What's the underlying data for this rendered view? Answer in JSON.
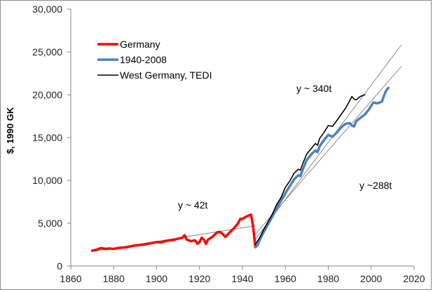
{
  "chart_data": {
    "type": "line",
    "title": "",
    "xlabel": "",
    "ylabel": "$, 1990 GK",
    "xlim": [
      1860,
      2020
    ],
    "ylim": [
      0,
      30000
    ],
    "x_ticks": [
      1860,
      1880,
      1900,
      1920,
      1940,
      1960,
      1980,
      2000,
      2020
    ],
    "y_ticks": [
      0,
      5000,
      10000,
      15000,
      20000,
      25000,
      30000
    ],
    "x_tick_labels": [
      "1860",
      "1880",
      "1900",
      "1920",
      "1940",
      "1960",
      "1980",
      "2000",
      "2020"
    ],
    "y_tick_labels": [
      "0",
      "5,000",
      "10,000",
      "15,000",
      "20,000",
      "25,000",
      "30,000"
    ],
    "grid": false,
    "legend_position": "top-left",
    "series": [
      {
        "name": "Germany",
        "color": "#ff0000",
        "points": [
          [
            1870,
            1800
          ],
          [
            1872,
            1900
          ],
          [
            1874,
            2100
          ],
          [
            1876,
            2000
          ],
          [
            1878,
            2050
          ],
          [
            1880,
            2000
          ],
          [
            1882,
            2100
          ],
          [
            1884,
            2150
          ],
          [
            1886,
            2200
          ],
          [
            1888,
            2300
          ],
          [
            1890,
            2400
          ],
          [
            1892,
            2450
          ],
          [
            1894,
            2500
          ],
          [
            1896,
            2600
          ],
          [
            1898,
            2700
          ],
          [
            1900,
            2800
          ],
          [
            1902,
            2750
          ],
          [
            1904,
            2900
          ],
          [
            1906,
            3000
          ],
          [
            1908,
            3050
          ],
          [
            1910,
            3200
          ],
          [
            1912,
            3300
          ],
          [
            1913,
            3600
          ],
          [
            1914,
            3100
          ],
          [
            1916,
            2900
          ],
          [
            1918,
            3000
          ],
          [
            1919,
            2600
          ],
          [
            1920,
            2800
          ],
          [
            1921,
            3300
          ],
          [
            1922,
            3100
          ],
          [
            1923,
            2600
          ],
          [
            1924,
            3100
          ],
          [
            1926,
            3400
          ],
          [
            1928,
            3900
          ],
          [
            1929,
            4000
          ],
          [
            1930,
            3900
          ],
          [
            1931,
            3700
          ],
          [
            1932,
            3400
          ],
          [
            1934,
            3900
          ],
          [
            1936,
            4400
          ],
          [
            1938,
            5000
          ],
          [
            1939,
            5500
          ],
          [
            1940,
            5500
          ],
          [
            1942,
            5800
          ],
          [
            1944,
            6000
          ],
          [
            1945,
            4600
          ],
          [
            1946,
            2200
          ]
        ]
      },
      {
        "name": "1940-2008",
        "color": "#4f81bd",
        "points": [
          [
            1946,
            2200
          ],
          [
            1947,
            2400
          ],
          [
            1948,
            3000
          ],
          [
            1950,
            4000
          ],
          [
            1952,
            4900
          ],
          [
            1954,
            5800
          ],
          [
            1956,
            6800
          ],
          [
            1958,
            7600
          ],
          [
            1960,
            8500
          ],
          [
            1962,
            9300
          ],
          [
            1964,
            10100
          ],
          [
            1966,
            10600
          ],
          [
            1967,
            10500
          ],
          [
            1968,
            11200
          ],
          [
            1970,
            12400
          ],
          [
            1972,
            13000
          ],
          [
            1974,
            13500
          ],
          [
            1975,
            13300
          ],
          [
            1976,
            14000
          ],
          [
            1978,
            14700
          ],
          [
            1980,
            15300
          ],
          [
            1982,
            15100
          ],
          [
            1984,
            15600
          ],
          [
            1986,
            16200
          ],
          [
            1988,
            16600
          ],
          [
            1990,
            16700
          ],
          [
            1991,
            16400
          ],
          [
            1992,
            16300
          ],
          [
            1993,
            16900
          ],
          [
            1995,
            17300
          ],
          [
            1997,
            17700
          ],
          [
            1999,
            18300
          ],
          [
            2001,
            19100
          ],
          [
            2003,
            19000
          ],
          [
            2005,
            19200
          ],
          [
            2006,
            19900
          ],
          [
            2007,
            20500
          ],
          [
            2008,
            20800
          ]
        ]
      },
      {
        "name": "West Germany, TEDI",
        "color": "#000000",
        "points": [
          [
            1946,
            2500
          ],
          [
            1948,
            3300
          ],
          [
            1950,
            4300
          ],
          [
            1952,
            5200
          ],
          [
            1954,
            6100
          ],
          [
            1956,
            7200
          ],
          [
            1958,
            8000
          ],
          [
            1960,
            9200
          ],
          [
            1962,
            9900
          ],
          [
            1964,
            10800
          ],
          [
            1966,
            11300
          ],
          [
            1967,
            11200
          ],
          [
            1968,
            11900
          ],
          [
            1970,
            13100
          ],
          [
            1972,
            13700
          ],
          [
            1974,
            14300
          ],
          [
            1975,
            14100
          ],
          [
            1976,
            14900
          ],
          [
            1978,
            15600
          ],
          [
            1980,
            16400
          ],
          [
            1982,
            16300
          ],
          [
            1984,
            17000
          ],
          [
            1986,
            17700
          ],
          [
            1988,
            18400
          ],
          [
            1990,
            19300
          ],
          [
            1991,
            19800
          ],
          [
            1992,
            19500
          ],
          [
            1993,
            19400
          ],
          [
            1995,
            19800
          ],
          [
            1997,
            20000
          ]
        ]
      }
    ],
    "trendlines": [
      {
        "color": "#7f7f7f",
        "points": [
          [
            1870,
            1700
          ],
          [
            1946,
            4700
          ]
        ]
      },
      {
        "color": "#7f7f7f",
        "points": [
          [
            1946,
            3100
          ],
          [
            2014,
            25800
          ]
        ]
      },
      {
        "color": "#7f7f7f",
        "points": [
          [
            1946,
            3700
          ],
          [
            2014,
            23300
          ]
        ]
      }
    ],
    "annotations": [
      {
        "text": "y ~ 42t"
      },
      {
        "text": "y ~ 340t"
      },
      {
        "text": "y ~288t"
      }
    ]
  }
}
